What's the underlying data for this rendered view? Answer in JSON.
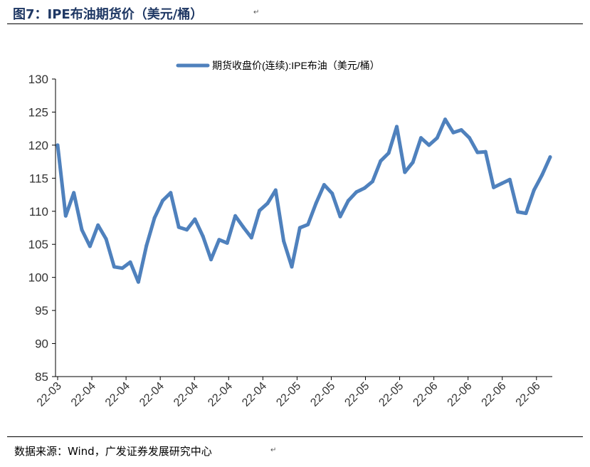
{
  "header": {
    "title": "图7：IPE布油期货价（美元/桶）",
    "para_mark": "↵"
  },
  "footer": {
    "source": "数据来源：Wind，广发证券发展研究中心",
    "para_mark": "↵"
  },
  "chart_data": {
    "type": "line",
    "title": "",
    "xlabel": "",
    "ylabel": "",
    "ylim": [
      85,
      130
    ],
    "yticks": [
      85,
      90,
      95,
      100,
      105,
      110,
      115,
      120,
      125,
      130
    ],
    "xtick_labels": [
      "22-03",
      "22-04",
      "22-04",
      "22-04",
      "22-04",
      "22-04",
      "22-04",
      "22-05",
      "22-05",
      "22-05",
      "22-05",
      "22-06",
      "22-06",
      "22-06",
      "22-06"
    ],
    "legend": {
      "position": "top",
      "entry": "期货收盘价(连续):IPE布油（美元/桶）"
    },
    "grid": false,
    "series": [
      {
        "name": "期货收盘价(连续):IPE布油（美元/桶）",
        "color": "#4f81bd",
        "values": [
          120.0,
          109.3,
          112.8,
          107.2,
          104.7,
          107.9,
          105.8,
          101.6,
          101.4,
          102.3,
          99.3,
          104.8,
          109.0,
          111.6,
          112.8,
          107.6,
          107.2,
          108.8,
          106.2,
          102.7,
          105.7,
          105.2,
          109.3,
          107.6,
          106.0,
          110.1,
          111.2,
          113.2,
          105.5,
          101.6,
          107.5,
          108.0,
          111.2,
          114.0,
          112.7,
          109.2,
          111.6,
          112.9,
          113.5,
          114.5,
          117.6,
          118.8,
          122.8,
          115.9,
          117.4,
          121.1,
          120.0,
          121.1,
          123.9,
          121.9,
          122.3,
          121.1,
          118.9,
          119.0,
          113.6,
          114.2,
          114.8,
          109.9,
          109.7,
          113.2,
          115.5,
          118.2
        ]
      }
    ]
  }
}
